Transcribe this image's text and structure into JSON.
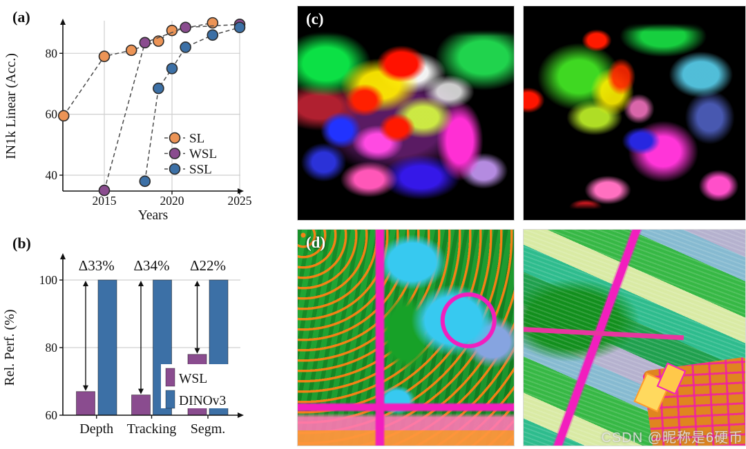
{
  "panels": {
    "a": {
      "label": "(a)"
    },
    "b": {
      "label": "(b)"
    },
    "c": {
      "label": "(c)"
    },
    "d": {
      "label": "(d)"
    }
  },
  "watermark": {
    "text": "CSDN @昵称是6硬币"
  },
  "colors": {
    "sl_orange": "#EC9456",
    "wsl_purple": "#8A4C8F",
    "ssl_blue": "#3C70A6",
    "marker_outline": "#2b2b2b",
    "dash_line": "#4a4a4a",
    "grid": "#cfcfcf",
    "axis": "#111111",
    "bar_edge": "rgba(0,0,0,0.45)"
  },
  "chart_data": [
    {
      "id": "panel_a",
      "type": "scatter",
      "xlabel": "Years",
      "ylabel": "IN1k Linear (Acc.)",
      "xticks": [
        2015,
        2020,
        2025
      ],
      "yticks": [
        40,
        60,
        80
      ],
      "xlim": [
        2011.9,
        2025.3
      ],
      "ylim": [
        34.8,
        90.8
      ],
      "grid": true,
      "legend_position": "lower right inside",
      "legend": [
        "SL",
        "WSL",
        "SSL"
      ],
      "series": [
        {
          "name": "SL",
          "color_key": "sl_orange",
          "points": [
            [
              2012,
              59.5
            ],
            [
              2015,
              79
            ],
            [
              2017,
              81
            ],
            [
              2019,
              84
            ],
            [
              2020,
              87.5
            ],
            [
              2023,
              90
            ]
          ]
        },
        {
          "name": "WSL",
          "color_key": "wsl_purple",
          "points": [
            [
              2015,
              35
            ],
            [
              2018,
              83.5
            ],
            [
              2021,
              88.5
            ],
            [
              2025,
              89.5
            ]
          ]
        },
        {
          "name": "SSL",
          "color_key": "ssl_blue",
          "points": [
            [
              2018,
              38
            ],
            [
              2019,
              68.5
            ],
            [
              2020,
              75
            ],
            [
              2021,
              82
            ],
            [
              2023,
              86
            ],
            [
              2025,
              88.5
            ]
          ]
        }
      ]
    },
    {
      "id": "panel_b",
      "type": "bar",
      "ylabel": "Rel. Perf. (%)",
      "categories": [
        "Depth",
        "Tracking",
        "Segm."
      ],
      "yticks": [
        60,
        80,
        100
      ],
      "ylim": [
        60,
        112
      ],
      "grid": true,
      "legend_position": "lower right inside",
      "series": [
        {
          "name": "WSL",
          "color_key": "wsl_purple",
          "values": [
            67,
            66,
            78
          ]
        },
        {
          "name": "DINOv3",
          "color_key": "ssl_blue",
          "values": [
            100,
            100,
            100
          ]
        }
      ],
      "annotations": [
        "Δ33%",
        "Δ34%",
        "Δ22%"
      ]
    }
  ]
}
